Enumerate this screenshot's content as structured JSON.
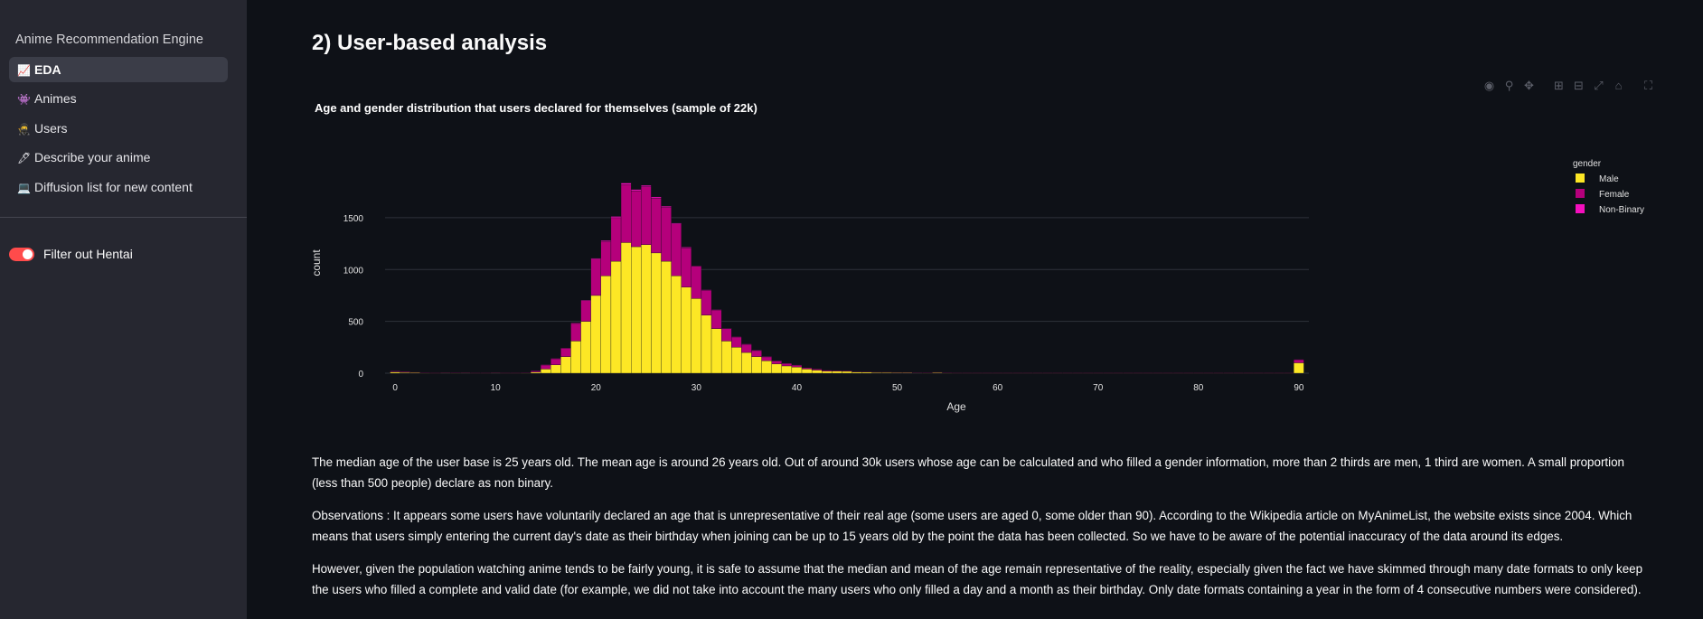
{
  "sidebar": {
    "app_title": "Anime Recommendation Engine",
    "nav_items": [
      {
        "label": "EDA",
        "icon": "📈",
        "icon_name": "chart-increasing-icon",
        "active": true
      },
      {
        "label": "Animes",
        "icon": "👾",
        "icon_name": "alien-monster-icon",
        "active": false
      },
      {
        "label": "Users",
        "icon": "🥷",
        "icon_name": "ninja-icon",
        "active": false
      },
      {
        "label": "Describe your anime",
        "icon": "🖋",
        "icon_name": "pen-icon",
        "active": false
      },
      {
        "label": "Diffusion list for new content",
        "icon": "💻",
        "icon_name": "laptop-icon",
        "active": false
      }
    ],
    "toggle": {
      "label": "Filter out Hentai",
      "checked": true,
      "color": "#ff4b4b"
    }
  },
  "main": {
    "title": "2) User-based analysis",
    "paragraphs": [
      "The median age of the user base is 25 years old. The mean age is around 26 years old. Out of around 30k users whose age can be calculated and who filled a gender information, more than 2 thirds are men, 1 third are women. A small proportion (less than 500 people) declare as non binary.",
      "Observations : It appears some users have voluntarily declared an age that is unrepresentative of their real age (some users are aged 0, some older than 90). According to the Wikipedia article on MyAnimeList, the website exists since 2004. Which means that users simply entering the current day's date as their birthday when joining can be up to 15 years old by the point the data has been collected. So we have to be aware of the potential inaccuracy of the data around its edges.",
      "However, given the population watching anime tends to be fairly young, it is safe to assume that the median and mean of the age remain representative of the reality, especially given the fact we have skimmed through many date formats to only keep the users who filled a complete and valid date (for example, we did not take into account the many users who only filled a day and a month as their birthday. Only date formats containing a year in the form of 4 consecutive numbers were considered)."
    ]
  },
  "modebar": [
    "camera-icon",
    "zoom-icon",
    "pan-icon",
    "zoom-in-icon",
    "zoom-out-icon",
    "autoscale-icon",
    "home-icon",
    "fullscreen-icon"
  ],
  "chart_data": {
    "type": "bar",
    "stacked": true,
    "title": "Age and gender distribution that users declared for themselves (sample of 22k)",
    "xlabel": "Age",
    "ylabel": "count",
    "xlim": [
      -1,
      91
    ],
    "ylim": [
      0,
      1900
    ],
    "xticks": [
      0,
      10,
      20,
      30,
      40,
      50,
      60,
      70,
      80,
      90
    ],
    "yticks": [
      0,
      500,
      1000,
      1500
    ],
    "grid": "horizontal",
    "legend_title": "gender",
    "legend_position": "top-right",
    "x": [
      0,
      1,
      2,
      3,
      4,
      5,
      6,
      7,
      8,
      9,
      10,
      11,
      12,
      13,
      14,
      15,
      16,
      17,
      18,
      19,
      20,
      21,
      22,
      23,
      24,
      25,
      26,
      27,
      28,
      29,
      30,
      31,
      32,
      33,
      34,
      35,
      36,
      37,
      38,
      39,
      40,
      41,
      42,
      43,
      44,
      45,
      46,
      47,
      48,
      49,
      50,
      51,
      52,
      53,
      54,
      55,
      56,
      57,
      58,
      59,
      60,
      61,
      62,
      63,
      64,
      65,
      66,
      67,
      68,
      69,
      70,
      71,
      72,
      73,
      74,
      75,
      76,
      77,
      78,
      79,
      80,
      81,
      82,
      83,
      84,
      85,
      86,
      87,
      88,
      89,
      90
    ],
    "series": [
      {
        "name": "Male",
        "color": "#fde725",
        "values": [
          12,
          8,
          6,
          3,
          2,
          4,
          3,
          4,
          2,
          2,
          4,
          2,
          2,
          3,
          10,
          40,
          80,
          160,
          310,
          500,
          750,
          940,
          1080,
          1260,
          1220,
          1240,
          1160,
          1080,
          940,
          830,
          720,
          560,
          430,
          310,
          250,
          200,
          160,
          120,
          90,
          70,
          60,
          40,
          30,
          20,
          20,
          18,
          12,
          10,
          8,
          8,
          6,
          6,
          4,
          3,
          6,
          3,
          2,
          2,
          2,
          2,
          2,
          2,
          2,
          2,
          2,
          2,
          2,
          2,
          2,
          2,
          2,
          2,
          2,
          2,
          2,
          2,
          2,
          2,
          2,
          2,
          2,
          2,
          2,
          2,
          2,
          2,
          2,
          2,
          2,
          2,
          100
        ]
      },
      {
        "name": "Female",
        "color": "#b5007b",
        "values": [
          8,
          6,
          4,
          2,
          1,
          3,
          2,
          3,
          1,
          1,
          3,
          1,
          1,
          2,
          14,
          40,
          60,
          80,
          170,
          200,
          350,
          330,
          420,
          560,
          540,
          560,
          530,
          520,
          500,
          380,
          310,
          240,
          180,
          120,
          100,
          80,
          60,
          40,
          30,
          25,
          18,
          12,
          10,
          8,
          6,
          6,
          4,
          4,
          3,
          3,
          3,
          3,
          2,
          2,
          4,
          2,
          1,
          1,
          1,
          1,
          1,
          1,
          1,
          1,
          1,
          1,
          1,
          1,
          1,
          1,
          1,
          1,
          1,
          1,
          1,
          1,
          1,
          1,
          1,
          1,
          1,
          1,
          1,
          1,
          1,
          1,
          1,
          1,
          1,
          1,
          30
        ]
      },
      {
        "name": "Non-Binary",
        "color": "#f40fbd",
        "values": [
          1,
          0,
          0,
          0,
          0,
          0,
          0,
          0,
          0,
          0,
          0,
          0,
          0,
          0,
          1,
          2,
          3,
          4,
          6,
          6,
          8,
          10,
          12,
          14,
          12,
          12,
          10,
          10,
          8,
          6,
          6,
          5,
          4,
          3,
          2,
          2,
          2,
          1,
          1,
          1,
          1,
          0,
          0,
          0,
          0,
          0,
          0,
          0,
          0,
          0,
          0,
          0,
          0,
          0,
          0,
          0,
          0,
          0,
          0,
          0,
          0,
          0,
          0,
          0,
          0,
          0,
          0,
          0,
          0,
          0,
          0,
          0,
          0,
          0,
          0,
          0,
          0,
          0,
          0,
          0,
          0,
          0,
          0,
          0,
          0,
          0,
          0,
          0,
          0,
          0,
          2
        ]
      }
    ]
  }
}
